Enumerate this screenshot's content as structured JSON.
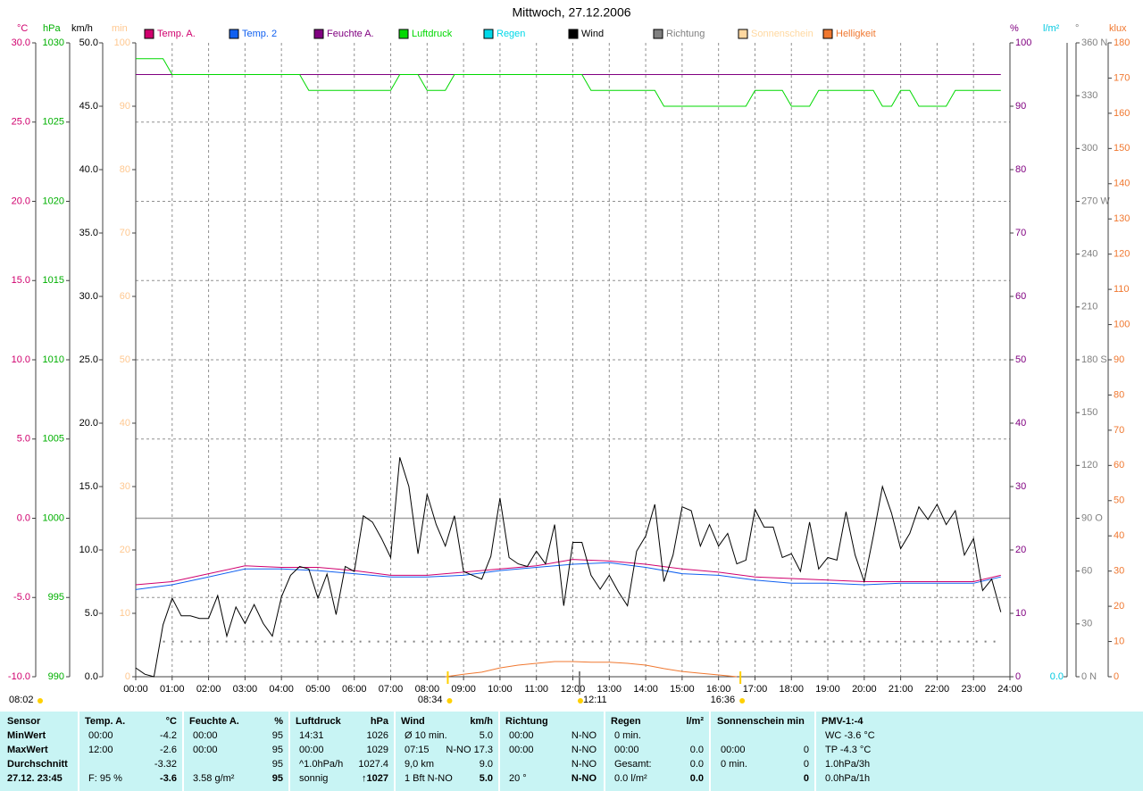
{
  "chart_data": {
    "type": "line",
    "title": "Mittwoch, 27.12.2006",
    "grid": true,
    "xlim": [
      0,
      24
    ],
    "xticks": [
      {
        "value": 0,
        "label": "00:00"
      },
      {
        "value": 1,
        "label": "01:00"
      },
      {
        "value": 2,
        "label": "02:00"
      },
      {
        "value": 3,
        "label": "03:00"
      },
      {
        "value": 4,
        "label": "04:00"
      },
      {
        "value": 5,
        "label": "05:00"
      },
      {
        "value": 6,
        "label": "06:00"
      },
      {
        "value": 7,
        "label": "07:00"
      },
      {
        "value": 8,
        "label": "08:00"
      },
      {
        "value": 9,
        "label": "09:00"
      },
      {
        "value": 10,
        "label": "10:00"
      },
      {
        "value": 11,
        "label": "11:00"
      },
      {
        "value": 12,
        "label": "12:00"
      },
      {
        "value": 13,
        "label": "13:00"
      },
      {
        "value": 14,
        "label": "14:00"
      },
      {
        "value": 15,
        "label": "15:00"
      },
      {
        "value": 16,
        "label": "16:00"
      },
      {
        "value": 17,
        "label": "17:00"
      },
      {
        "value": 18,
        "label": "18:00"
      },
      {
        "value": 19,
        "label": "19:00"
      },
      {
        "value": 20,
        "label": "20:00"
      },
      {
        "value": 21,
        "label": "21:00"
      },
      {
        "value": 22,
        "label": "22:00"
      },
      {
        "value": 23,
        "label": "23:00"
      },
      {
        "value": 24,
        "label": "24:00"
      }
    ],
    "axes": [
      {
        "unit": "°C",
        "color": "#d0006e",
        "ylim": [
          -10,
          30
        ],
        "yticks": [
          {
            "value": -10,
            "label": "-10.0"
          },
          {
            "value": -5,
            "label": "-5.0"
          },
          {
            "value": 0,
            "label": "0.0"
          },
          {
            "value": 5,
            "label": "5.0"
          },
          {
            "value": 10,
            "label": "10.0"
          },
          {
            "value": 15,
            "label": "15.0"
          },
          {
            "value": 20,
            "label": "20.0"
          },
          {
            "value": 25,
            "label": "25.0"
          },
          {
            "value": 30,
            "label": "30.0"
          }
        ]
      },
      {
        "unit": "hPa",
        "color": "#00b000",
        "ylim": [
          990,
          1030
        ],
        "yticks": [
          990,
          995,
          1000,
          1005,
          1010,
          1015,
          1020,
          1025,
          1030
        ]
      },
      {
        "unit": "km/h",
        "color": "#000000",
        "ylim": [
          0,
          50
        ],
        "yticks": [
          {
            "value": 0,
            "label": "0.0"
          },
          {
            "value": 5,
            "label": "5.0"
          },
          {
            "value": 10,
            "label": "10.0"
          },
          {
            "value": 15,
            "label": "15.0"
          },
          {
            "value": 20,
            "label": "20.0"
          },
          {
            "value": 25,
            "label": "25.0"
          },
          {
            "value": 30,
            "label": "30.0"
          },
          {
            "value": 35,
            "label": "35.0"
          },
          {
            "value": 40,
            "label": "40.0"
          },
          {
            "value": 45,
            "label": "45.0"
          },
          {
            "value": 50,
            "label": "50.0"
          }
        ]
      },
      {
        "unit": "min",
        "color": "#ffc890",
        "ylim": [
          0,
          100
        ],
        "yticks": [
          0,
          10,
          20,
          30,
          40,
          50,
          60,
          70,
          80,
          90,
          100
        ]
      },
      {
        "unit": "%",
        "color": "#800080",
        "ylim": [
          0,
          100
        ],
        "yticks": [
          0,
          10,
          20,
          30,
          40,
          50,
          60,
          70,
          80,
          90,
          100
        ]
      },
      {
        "unit": "l/m²",
        "color": "#00c8e0",
        "ylim": [
          0,
          10
        ],
        "yticks": [
          {
            "value": 0,
            "label": "0.0"
          }
        ]
      },
      {
        "unit": "°",
        "color": "#808080",
        "ylim": [
          0,
          360
        ],
        "yticks": [
          {
            "value": 0,
            "label": "0 N"
          },
          30,
          60,
          {
            "value": 90,
            "label": "90 O"
          },
          120,
          150,
          {
            "value": 180,
            "label": "180 S"
          },
          210,
          240,
          {
            "value": 270,
            "label": "270 W"
          },
          300,
          330,
          {
            "value": 360,
            "label": "360 N"
          }
        ]
      },
      {
        "unit": "klux",
        "color": "#f07830",
        "ylim": [
          0,
          180
        ],
        "yticks": [
          0,
          10,
          20,
          30,
          40,
          50,
          60,
          70,
          80,
          90,
          100,
          110,
          120,
          130,
          140,
          150,
          160,
          170,
          180
        ]
      }
    ],
    "series": [
      {
        "name": "Temp. A.",
        "color": "#d0006e",
        "axis": 0,
        "x": [
          0,
          1,
          2,
          3,
          4,
          5,
          6,
          7,
          8,
          9,
          10,
          11,
          12,
          13,
          14,
          15,
          16,
          17,
          18,
          19,
          20,
          21,
          22,
          23,
          23.75
        ],
        "values": [
          -4.2,
          -4.0,
          -3.5,
          -3.0,
          -3.1,
          -3.1,
          -3.3,
          -3.6,
          -3.6,
          -3.4,
          -3.2,
          -3.0,
          -2.6,
          -2.7,
          -2.9,
          -3.2,
          -3.4,
          -3.7,
          -3.8,
          -3.9,
          -4.0,
          -4.0,
          -4.0,
          -4.0,
          -3.6
        ]
      },
      {
        "name": "Temp. 2",
        "color": "#1060f0",
        "axis": 0,
        "x": [
          0,
          1,
          2,
          3,
          4,
          5,
          6,
          7,
          8,
          9,
          10,
          11,
          12,
          13,
          14,
          15,
          16,
          17,
          18,
          19,
          20,
          21,
          22,
          23,
          23.75
        ],
        "values": [
          -4.5,
          -4.2,
          -3.7,
          -3.2,
          -3.2,
          -3.3,
          -3.5,
          -3.7,
          -3.7,
          -3.6,
          -3.3,
          -3.1,
          -2.9,
          -2.8,
          -3.1,
          -3.5,
          -3.6,
          -3.9,
          -4.1,
          -4.1,
          -4.2,
          -4.1,
          -4.1,
          -4.1,
          -3.7
        ]
      },
      {
        "name": "Feuchte A.",
        "color": "#800080",
        "axis": 4,
        "x": [
          0,
          23.75
        ],
        "values": [
          95,
          95
        ]
      },
      {
        "name": "Luftdruck",
        "color": "#00d800",
        "axis": 1,
        "x": [
          0,
          0.75,
          1,
          4.5,
          4.75,
          7,
          7.25,
          7.75,
          8,
          8.5,
          8.75,
          12.25,
          12.5,
          14.25,
          14.5,
          16.75,
          17,
          17.75,
          18,
          18.5,
          18.75,
          20.25,
          20.5,
          20.75,
          21,
          21.25,
          21.5,
          22.25,
          22.5,
          23.75
        ],
        "values": [
          1029,
          1029,
          1028,
          1028,
          1027,
          1027,
          1028,
          1028,
          1027,
          1027,
          1028,
          1028,
          1027,
          1027,
          1026,
          1026,
          1027,
          1027,
          1026,
          1026,
          1027,
          1027,
          1026,
          1026,
          1027,
          1027,
          1026,
          1026,
          1027,
          1027
        ]
      },
      {
        "name": "Regen",
        "color": "#00d8e8",
        "axis": 5
      },
      {
        "name": "Wind",
        "color": "#000000",
        "axis": 2,
        "x": [
          0,
          0.25,
          0.5,
          0.75,
          1,
          1.25,
          1.5,
          1.75,
          2,
          2.25,
          2.5,
          2.75,
          3,
          3.25,
          3.5,
          3.75,
          4,
          4.25,
          4.5,
          4.75,
          5,
          5.25,
          5.5,
          5.75,
          6,
          6.25,
          6.5,
          6.75,
          7,
          7.25,
          7.5,
          7.75,
          8,
          8.25,
          8.5,
          8.75,
          9,
          9.25,
          9.5,
          9.75,
          10,
          10.25,
          10.5,
          10.75,
          11,
          11.25,
          11.5,
          11.75,
          12,
          12.25,
          12.5,
          12.75,
          13,
          13.25,
          13.5,
          13.75,
          14,
          14.25,
          14.5,
          14.75,
          15,
          15.25,
          15.5,
          15.75,
          16,
          16.25,
          16.5,
          16.75,
          17,
          17.25,
          17.5,
          17.75,
          18,
          18.25,
          18.5,
          18.75,
          19,
          19.25,
          19.5,
          19.75,
          20,
          20.25,
          20.5,
          20.75,
          21,
          21.25,
          21.5,
          21.75,
          22,
          22.25,
          22.5,
          22.75,
          23,
          23.25,
          23.5,
          23.75
        ],
        "values": [
          0.7,
          0.2,
          0,
          4.1,
          6.2,
          4.8,
          4.8,
          4.6,
          4.6,
          6.4,
          3.2,
          5.5,
          4.2,
          5.7,
          4.2,
          3.2,
          6.3,
          8.0,
          8.7,
          8.5,
          6.2,
          8.1,
          4.9,
          8.7,
          8.3,
          12.7,
          12.2,
          10.9,
          9.4,
          17.3,
          15.0,
          9.7,
          14.4,
          12.0,
          10.3,
          12.7,
          8.3,
          8.0,
          7.7,
          9.5,
          14.1,
          9.4,
          8.9,
          8.7,
          9.9,
          8.9,
          12.0,
          5.6,
          10.6,
          10.6,
          8.0,
          6.9,
          8.0,
          6.7,
          5.6,
          9.9,
          11.1,
          13.6,
          7.5,
          9.6,
          13.4,
          13.1,
          10.3,
          12.0,
          10.3,
          11.3,
          8.9,
          9.2,
          13.2,
          11.8,
          11.8,
          9.4,
          9.7,
          8.3,
          12.2,
          8.5,
          9.4,
          9.2,
          13.0,
          9.6,
          7.5,
          11.1,
          15.0,
          12.9,
          10.1,
          11.3,
          13.4,
          12.4,
          13.6,
          12.0,
          13.1,
          9.6,
          10.9,
          6.8,
          7.7,
          5.1
        ]
      },
      {
        "name": "Richtung",
        "color": "#808080",
        "axis": 6,
        "line_style": "dotted",
        "x": [
          0.75,
          23.75
        ],
        "values": [
          20,
          20
        ]
      },
      {
        "name": "Sonnenschein",
        "color": "#ffd8a0",
        "axis": 3
      },
      {
        "name": "Helligkeit",
        "color": "#f07830",
        "axis": 7,
        "x": [
          8.5,
          9,
          9.5,
          10,
          10.5,
          11,
          11.5,
          12,
          12.5,
          13,
          13.5,
          14,
          14.5,
          15,
          15.5,
          16,
          16.5
        ],
        "values": [
          0,
          0.7,
          1.3,
          2.5,
          3.3,
          3.8,
          4.3,
          4.3,
          4.1,
          4.1,
          3.8,
          3.3,
          2.3,
          1.5,
          1.0,
          0.5,
          0
        ]
      }
    ],
    "sun_marks": [
      {
        "value": 8.5667,
        "label": "08:34"
      },
      {
        "value": 12.1833,
        "label": "12:11"
      },
      {
        "value": 16.6,
        "label": "16:36"
      }
    ],
    "sunrise_note": "08:02"
  },
  "table": {
    "labels": [
      "Sensor",
      "MinWert",
      "MaxWert",
      "Durchschnitt",
      "27.12. 23:45"
    ],
    "columns": [
      {
        "title": "Temp. A.",
        "unit": "°C",
        "rows": [
          [
            "00:00",
            "-4.2"
          ],
          [
            "12:00",
            "-2.6"
          ],
          [
            null,
            "-3.32"
          ],
          [
            "F: 95 %",
            "-3.6"
          ]
        ]
      },
      {
        "title": "Feuchte A.",
        "unit": "%",
        "rows": [
          [
            "00:00",
            "95"
          ],
          [
            "00:00",
            "95"
          ],
          [
            null,
            "95"
          ],
          [
            "3.58 g/m²",
            "95"
          ]
        ]
      },
      {
        "title": "Luftdruck",
        "unit": "hPa",
        "rows": [
          [
            "14:31",
            "1026"
          ],
          [
            "00:00",
            "1029"
          ],
          [
            "^1.0hPa/h",
            "1027.4"
          ],
          [
            "sonnig",
            "↑1027"
          ]
        ]
      },
      {
        "title": "Wind",
        "unit": "km/h",
        "rows": [
          [
            "Ø 10 min.",
            "5.0"
          ],
          [
            "07:15",
            "N-NO 17.3"
          ],
          [
            "9,0 km",
            "9.0"
          ],
          [
            "1 Bft N-NO",
            "5.0"
          ]
        ]
      },
      {
        "title": "Richtung",
        "rows": [
          [
            "00:00",
            "N-NO"
          ],
          [
            "00:00",
            "N-NO"
          ],
          [
            null,
            "N-NO"
          ],
          [
            "20 °",
            "N-NO"
          ]
        ]
      },
      {
        "title": "Regen",
        "unit": "l/m²",
        "rows": [
          [
            "0 min.",
            null
          ],
          [
            "00:00",
            "0.0"
          ],
          [
            "Gesamt:",
            "0.0"
          ],
          [
            "0.0 l/m²",
            "0.0"
          ]
        ]
      },
      {
        "title": "Sonnenschein min",
        "rows": [
          [
            null,
            null
          ],
          [
            "00:00",
            "0"
          ],
          [
            "0 min.",
            "0"
          ],
          [
            null,
            "0"
          ]
        ]
      },
      {
        "title": "PMV-1:-4",
        "rows": [
          [
            "WC -3.6 °C",
            null
          ],
          [
            "TP -4.3 °C",
            null
          ],
          [
            "1.0hPa/3h",
            null
          ],
          [
            "0.0hPa/1h",
            null
          ]
        ]
      }
    ]
  }
}
